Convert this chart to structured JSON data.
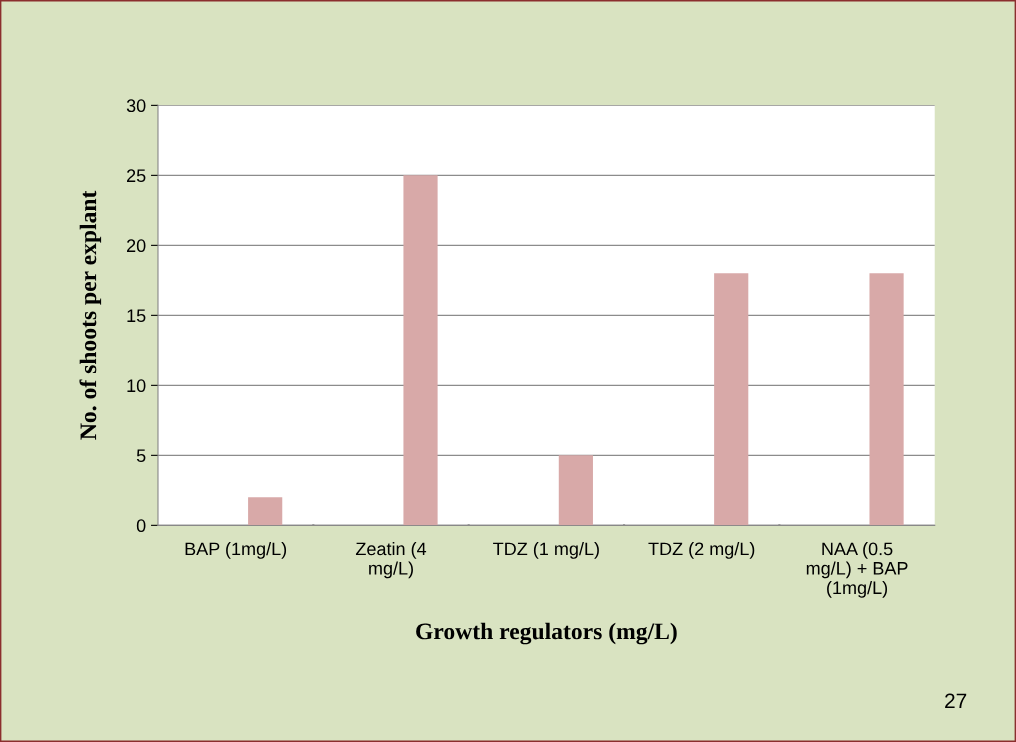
{
  "chart_data": {
    "type": "bar",
    "categories": [
      "BAP (1mg/L)",
      "Zeatin (4\nmg/L)",
      "TDZ (1 mg/L)",
      "TDZ (2 mg/L)",
      "NAA (0.5\nmg/L) + BAP\n(1mg/L)"
    ],
    "values": [
      2,
      25,
      5,
      18,
      18
    ],
    "color": "#d8a9a8",
    "xlabel": "Growth regulators (mg/L)",
    "ylabel": "No. of shoots per explant",
    "ylim": [
      0,
      30
    ],
    "yticks": [
      0,
      5,
      10,
      15,
      20,
      25,
      30
    ],
    "grid": "y",
    "annotations": [
      "27"
    ]
  }
}
